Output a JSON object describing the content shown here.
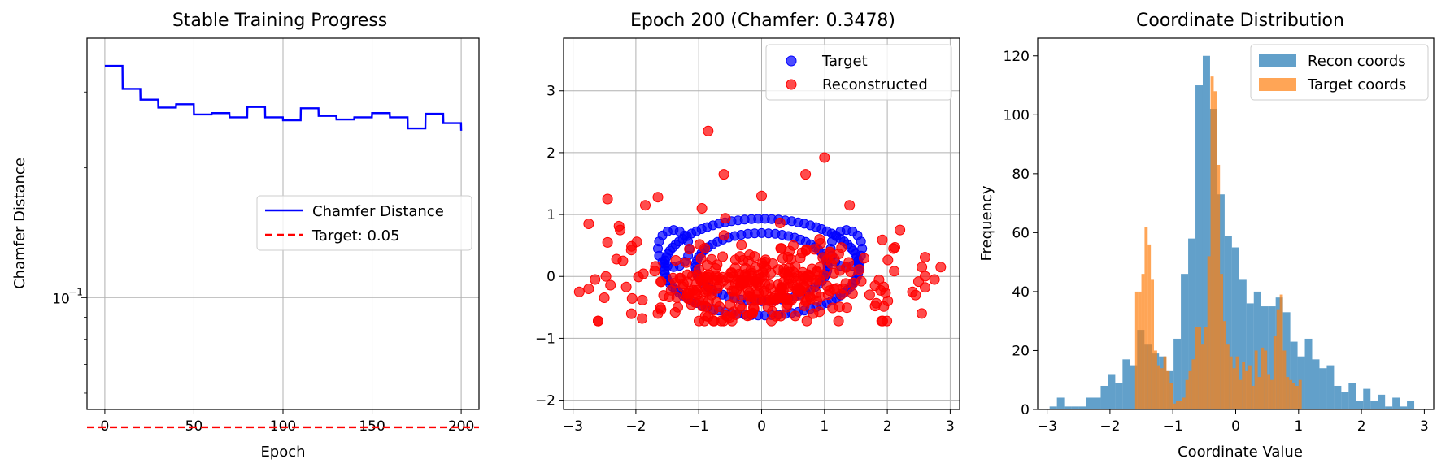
{
  "figure": {
    "background": "#ffffff"
  },
  "chart_data": [
    {
      "type": "line",
      "title": "Stable Training Progress",
      "xlabel": "Epoch",
      "ylabel": "Chamfer Distance",
      "xlim": [
        -10,
        210
      ],
      "ylim": [
        0.055,
        0.4
      ],
      "yscale": "log",
      "xticks": [
        0,
        50,
        100,
        150,
        200
      ],
      "xtick_labels": [
        "0",
        "50",
        "100",
        "150",
        "200"
      ],
      "yticks": [
        0.1
      ],
      "ytick_labels": [
        "10",
        "−1"
      ],
      "grid": true,
      "legend": {
        "position": "center-right",
        "entries": [
          "Chamfer Distance",
          "Target: 0.05"
        ]
      },
      "series": [
        {
          "name": "Chamfer Distance",
          "color": "#0000ff",
          "style": "solid",
          "x": [
            0,
            9.9,
            10,
            19.9,
            20,
            29.9,
            30,
            39.9,
            40,
            49.9,
            50,
            59.9,
            60,
            69.9,
            70,
            79.9,
            80,
            89.9,
            90,
            99.9,
            100,
            109.9,
            110,
            119.9,
            120,
            129.9,
            130,
            139.9,
            140,
            149.9,
            150,
            159.9,
            160,
            169.9,
            170,
            179.9,
            180,
            189.9,
            190,
            199.9,
            200
          ],
          "y": [
            0.345,
            0.345,
            0.305,
            0.305,
            0.288,
            0.288,
            0.276,
            0.276,
            0.281,
            0.281,
            0.266,
            0.266,
            0.268,
            0.268,
            0.262,
            0.262,
            0.277,
            0.277,
            0.262,
            0.262,
            0.258,
            0.258,
            0.275,
            0.275,
            0.264,
            0.264,
            0.259,
            0.259,
            0.262,
            0.262,
            0.268,
            0.268,
            0.262,
            0.262,
            0.247,
            0.247,
            0.267,
            0.267,
            0.254,
            0.254,
            0.244
          ]
        },
        {
          "name": "Target: 0.05",
          "color": "#ff0000",
          "style": "dashed",
          "x": [
            -10,
            210
          ],
          "y": [
            0.05,
            0.05
          ]
        }
      ]
    },
    {
      "type": "scatter",
      "title": "Epoch 200 (Chamfer: 0.3478)",
      "xlabel": "",
      "ylabel": "",
      "xlim": [
        -3.15,
        3.15
      ],
      "ylim": [
        -2.15,
        3.85
      ],
      "xticks": [
        -3,
        -2,
        -1,
        0,
        1,
        2,
        3
      ],
      "xtick_labels": [
        "−3",
        "−2",
        "−1",
        "0",
        "1",
        "2",
        "3"
      ],
      "yticks": [
        -2,
        -1,
        0,
        1,
        2,
        3
      ],
      "ytick_labels": [
        "−2",
        "−1",
        "0",
        "1",
        "2",
        "3"
      ],
      "grid": true,
      "legend": {
        "position": "top-right",
        "entries": [
          "Target",
          "Reconstructed"
        ]
      },
      "series": [
        {
          "name": "Target",
          "color": "#0000ff",
          "shape": "ellipse-and-ring",
          "ellipse": {
            "cx": 0.0,
            "cy": 0.15,
            "rx": 1.55,
            "ry": 0.78,
            "n": 90
          },
          "inner_ellipse": {
            "cx": 0.0,
            "cy": 0.15,
            "rx": 1.05,
            "ry": 0.55,
            "n": 60
          },
          "right_ring": {
            "cx": 1.35,
            "cy": 0.45,
            "rx": 0.25,
            "ry": 0.3,
            "n": 16
          },
          "left_ring": {
            "cx": -1.4,
            "cy": 0.45,
            "rx": 0.25,
            "ry": 0.3,
            "n": 16
          }
        },
        {
          "name": "Reconstructed",
          "color": "#ff0000",
          "outliers": [
            [
              -0.85,
              2.35
            ],
            [
              1.0,
              1.92
            ],
            [
              -0.6,
              1.65
            ],
            [
              0.7,
              1.65
            ],
            [
              0.0,
              1.3
            ],
            [
              -2.45,
              1.25
            ],
            [
              -1.65,
              1.28
            ],
            [
              -1.85,
              1.15
            ],
            [
              -0.95,
              1.1
            ],
            [
              1.4,
              1.15
            ],
            [
              -2.75,
              0.85
            ],
            [
              -2.25,
              0.75
            ],
            [
              2.2,
              0.75
            ],
            [
              -2.45,
              0.55
            ],
            [
              2.1,
              0.45
            ],
            [
              -2.65,
              -0.05
            ],
            [
              -2.75,
              -0.2
            ],
            [
              -2.9,
              -0.25
            ],
            [
              2.85,
              0.15
            ],
            [
              2.75,
              -0.05
            ],
            [
              2.55,
              0.15
            ],
            [
              2.45,
              -0.3
            ],
            [
              -1.9,
              -0.68
            ],
            [
              -1.65,
              -0.6
            ],
            [
              2.4,
              -0.25
            ]
          ],
          "bulk": {
            "n": 340,
            "cx": 0.0,
            "cy": -0.12,
            "sx": 1.1,
            "sy": 0.32,
            "xmax": 2.6,
            "ymin": -0.72,
            "ymax": 1.05,
            "seed": 7
          }
        }
      ]
    },
    {
      "type": "histogram",
      "title": "Coordinate Distribution",
      "xlabel": "Coordinate Value",
      "ylabel": "Frequency",
      "xlim": [
        -3.15,
        3.15
      ],
      "ylim": [
        0,
        126
      ],
      "xticks": [
        -3,
        -2,
        -1,
        0,
        1,
        2,
        3
      ],
      "xtick_labels": [
        "−3",
        "−2",
        "−1",
        "0",
        "1",
        "2",
        "3"
      ],
      "yticks": [
        0,
        20,
        40,
        60,
        80,
        100,
        120
      ],
      "ytick_labels": [
        "0",
        "20",
        "40",
        "60",
        "80",
        "100",
        "120"
      ],
      "grid": false,
      "legend": {
        "position": "top-right",
        "entries": [
          "Recon coords",
          "Target coords"
        ]
      },
      "series": [
        {
          "name": "Recon coords",
          "color": "#1f77b4",
          "alpha": 0.7,
          "bin_start": -2.96,
          "bin_width": 0.116,
          "counts": [
            1,
            4,
            1,
            1,
            1,
            4,
            4,
            8,
            12,
            9,
            17,
            15,
            27,
            22,
            19,
            18,
            13,
            24,
            46,
            58,
            110,
            120,
            102,
            73,
            59,
            55,
            44,
            36,
            40,
            35,
            35,
            38,
            33,
            23,
            18,
            24,
            17,
            14,
            15,
            8,
            6,
            9,
            3,
            7,
            3,
            5,
            1,
            4,
            1,
            3
          ]
        },
        {
          "name": "Target coords",
          "color": "#ff7f0e",
          "alpha": 0.7,
          "bin_start": -1.6,
          "bin_width": 0.05,
          "counts": [
            40,
            40,
            46,
            62,
            56,
            44,
            20,
            15,
            14,
            18,
            13,
            9,
            2,
            3,
            3,
            4,
            10,
            13,
            17,
            28,
            28,
            22,
            28,
            52,
            113,
            108,
            83,
            46,
            30,
            22,
            18,
            14,
            18,
            10,
            16,
            13,
            15,
            8,
            20,
            11,
            21,
            20,
            12,
            10,
            25,
            34,
            39,
            20,
            11,
            10,
            9,
            8,
            10
          ]
        }
      ]
    }
  ]
}
